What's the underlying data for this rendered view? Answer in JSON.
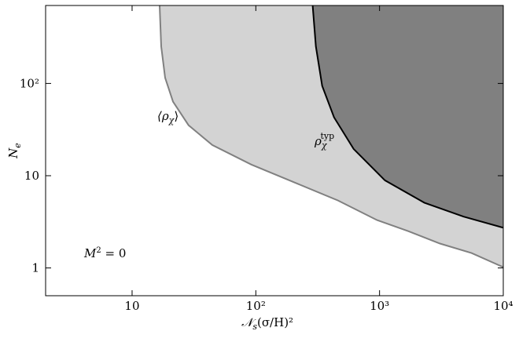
{
  "chart_data": {
    "type": "area",
    "xlabel": {
      "base": "𝒩",
      "sub": "s",
      "rest": "(σ/H)²"
    },
    "ylabel": {
      "base": "N",
      "sub": "e"
    },
    "log_x": true,
    "log_y": true,
    "xlim": [
      2,
      10000
    ],
    "ylim": [
      0.5,
      700
    ],
    "xticks": [
      10,
      {
        "value": 100,
        "label": "10²"
      },
      {
        "value": 1000,
        "label": "10³"
      },
      {
        "value": 10000,
        "label": "10⁴"
      }
    ],
    "yticks": [
      1,
      10,
      {
        "value": 100,
        "label": "10²"
      }
    ],
    "series": [
      {
        "name": "⟨ρχ⟩",
        "color": "#d3d3d3",
        "line_color": "#808080",
        "x": [
          16.7,
          17.2,
          18.5,
          21.4,
          28.6,
          44.5,
          92,
          222,
          460,
          955,
          1714,
          3080,
          5540,
          10000
        ],
        "values": [
          700,
          252,
          115,
          63.6,
          35.2,
          21.5,
          13.2,
          8.1,
          5.4,
          3.3,
          2.5,
          1.84,
          1.45,
          1.02
        ]
      },
      {
        "name": "ρχtyp",
        "color": "#808080",
        "line_color": "#000000",
        "x": [
          288,
          306,
          344,
          429,
          617,
          1106,
          2300,
          4780,
          10000
        ],
        "values": [
          700,
          252,
          94,
          42.9,
          19.5,
          8.9,
          5.1,
          3.6,
          2.73
        ]
      }
    ],
    "annotations": {
      "mean": {
        "open": "⟨ρ",
        "sub": "χ",
        "close": "⟩"
      },
      "typ": {
        "base": "ρ",
        "sub": "χ",
        "sup": "typ"
      },
      "mass": {
        "base": "M",
        "sup": "2",
        "rest": " = 0"
      }
    }
  }
}
